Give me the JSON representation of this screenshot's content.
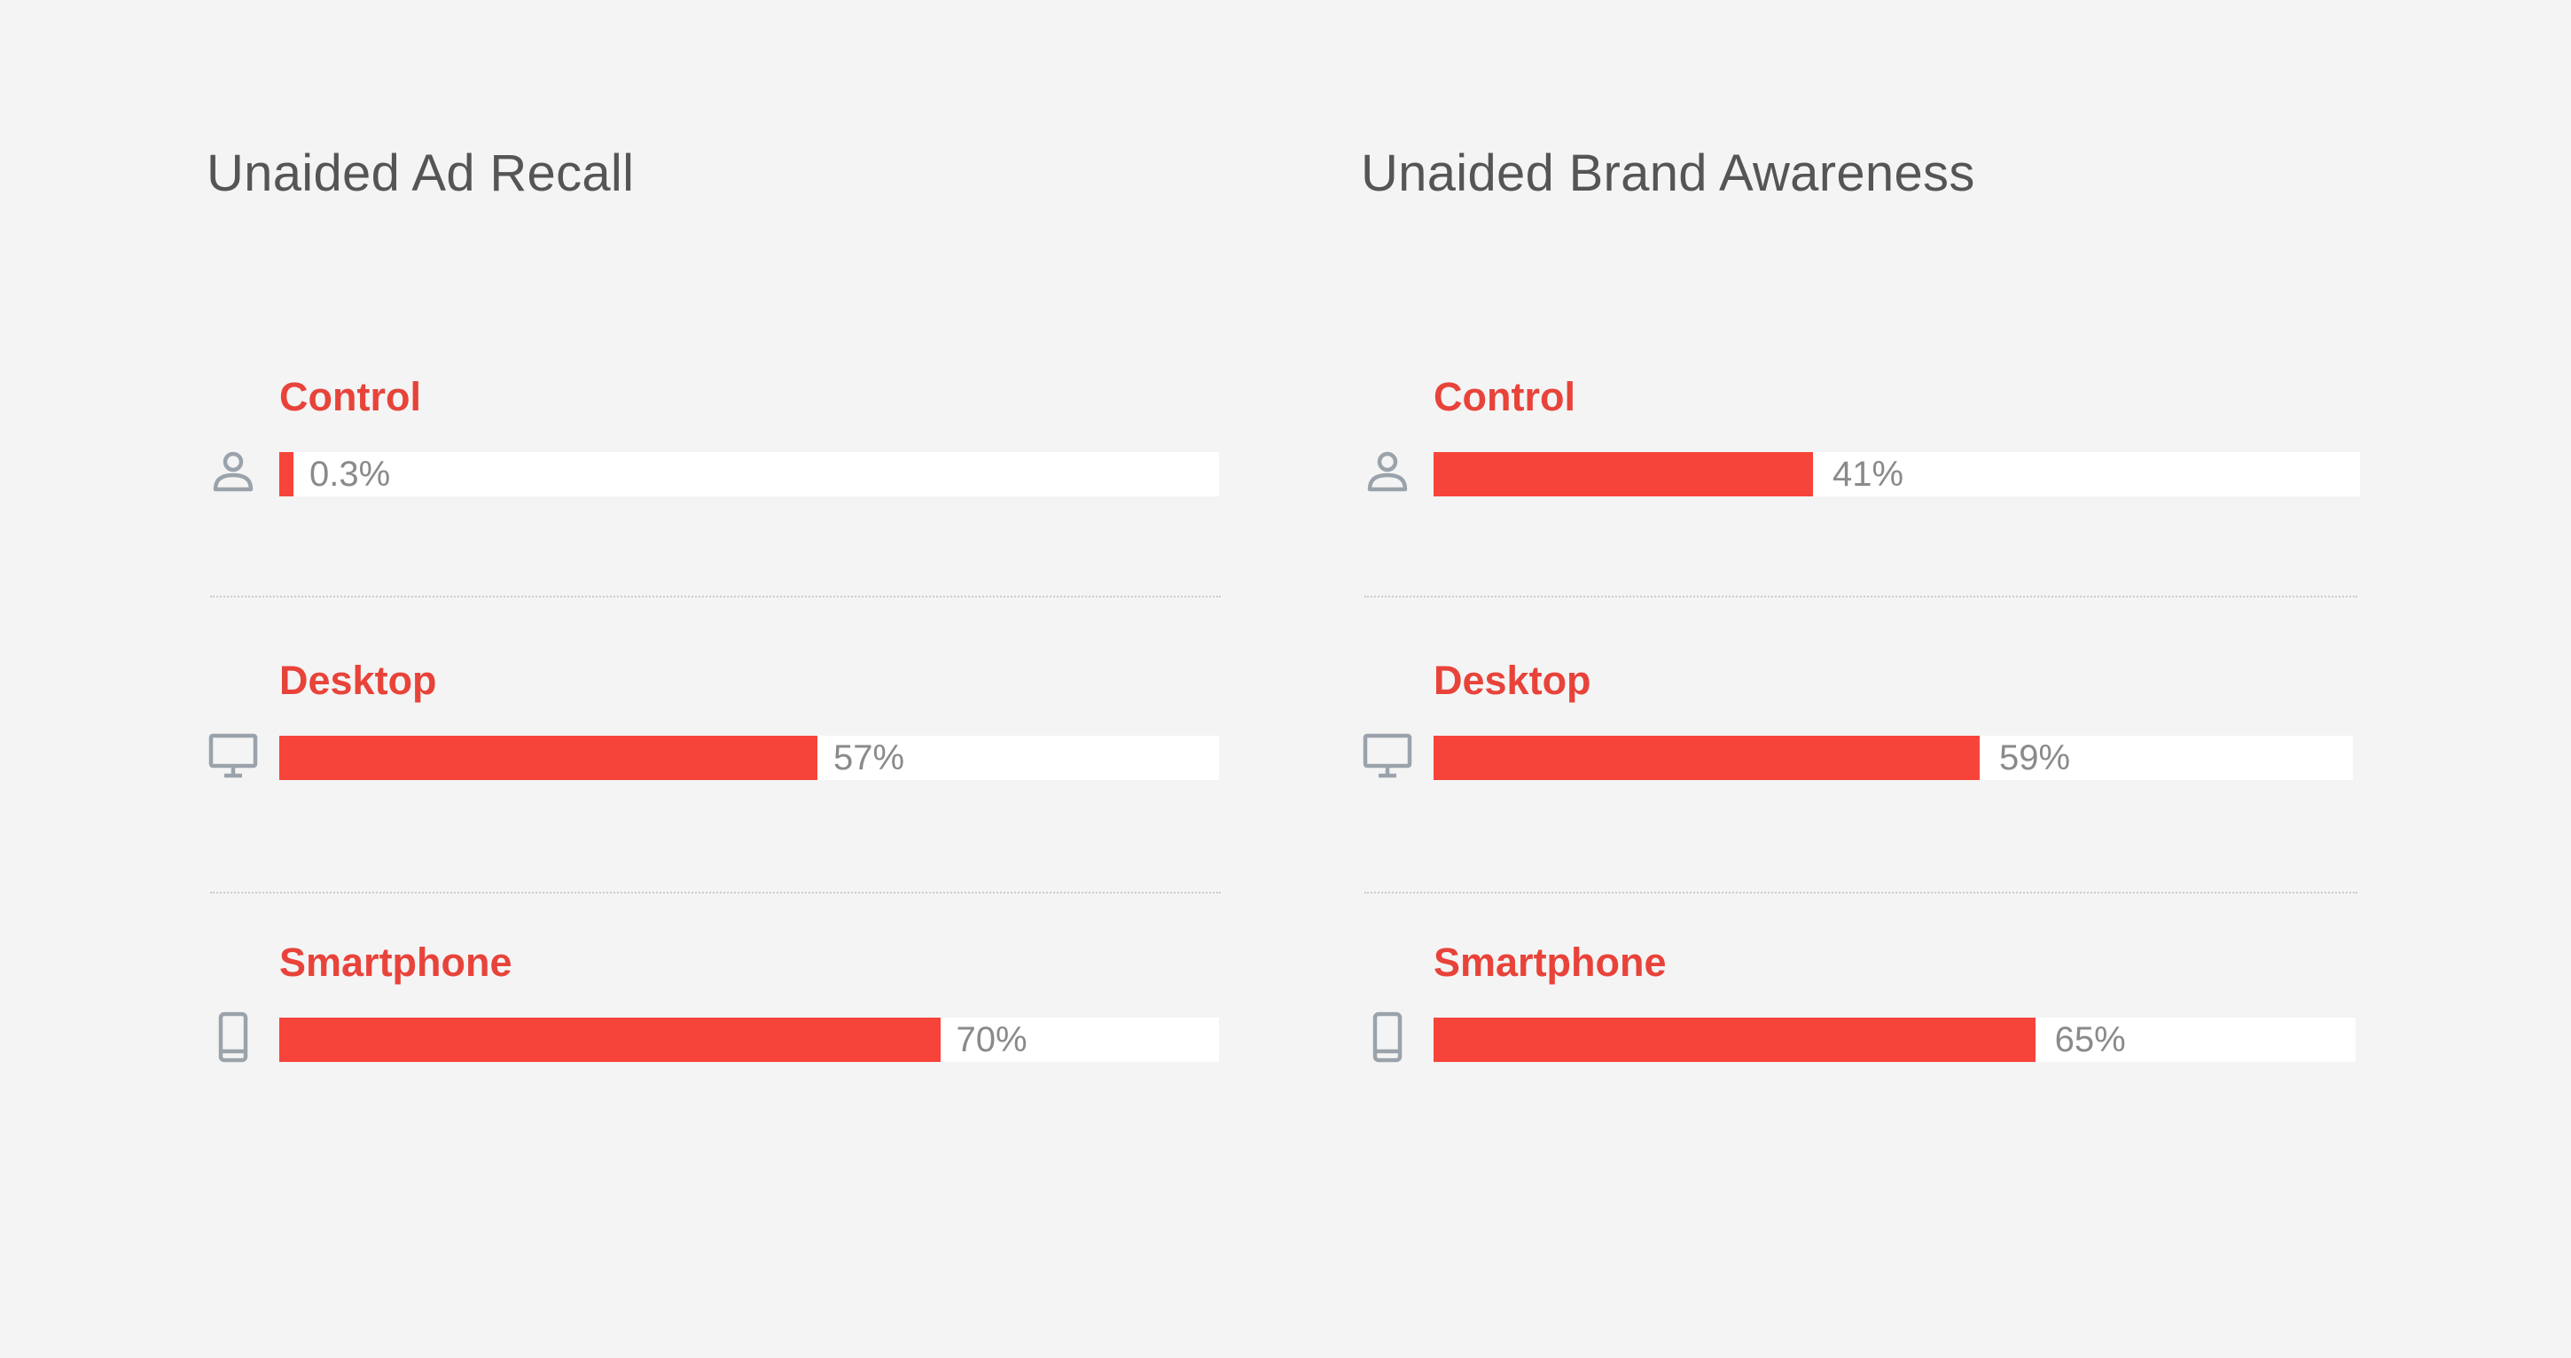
{
  "chart_data": [
    {
      "type": "bar",
      "title": "Unaided Ad Recall",
      "categories": [
        "Control",
        "Desktop",
        "Smartphone"
      ],
      "values": [
        0.3,
        57,
        70
      ],
      "value_labels": [
        "0.3%",
        "57%",
        "70%"
      ],
      "icons": [
        "person-icon",
        "desktop-icon",
        "smartphone-icon"
      ],
      "xlim": [
        0,
        100
      ],
      "orientation": "horizontal"
    },
    {
      "type": "bar",
      "title": "Unaided Brand Awareness",
      "categories": [
        "Control",
        "Desktop",
        "Smartphone"
      ],
      "values": [
        41,
        59,
        65
      ],
      "value_labels": [
        "41%",
        "59%",
        "65%"
      ],
      "icons": [
        "person-icon",
        "desktop-icon",
        "smartphone-icon"
      ],
      "xlim": [
        0,
        100
      ],
      "orientation": "horizontal"
    }
  ],
  "colors": {
    "bar": "#f7443b",
    "label": "#e8433a",
    "title": "#555555",
    "value": "#8a8a8a",
    "track": "#ffffff",
    "icon": "#9aa3ab",
    "background": "#f4f4f4"
  }
}
